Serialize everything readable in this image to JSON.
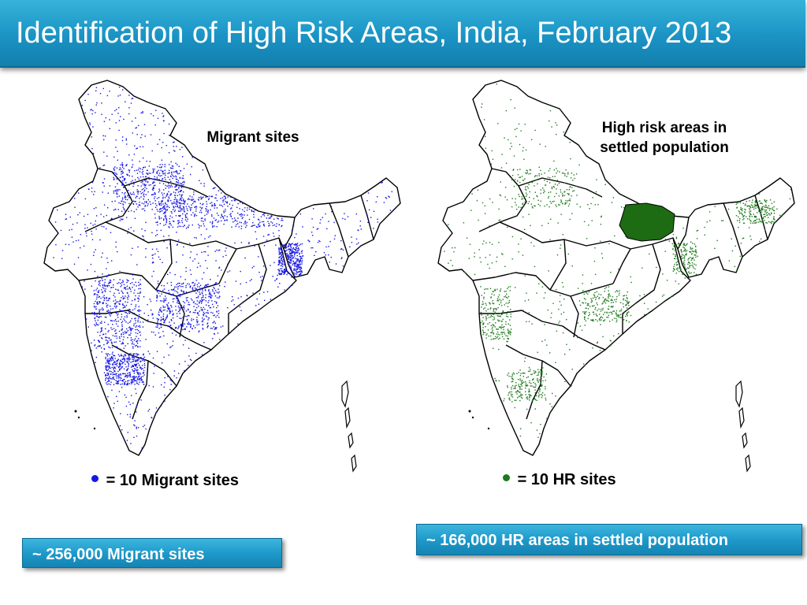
{
  "title": "Identification of High Risk Areas, India, February 2013",
  "maps": {
    "left": {
      "label": "Migrant sites",
      "dot_color": "#1515e6",
      "legend_symbol": "=",
      "legend_text": "10 Migrant sites",
      "summary": "~ 256,000 Migrant sites"
    },
    "right": {
      "label_line1": "High risk areas in",
      "label_line2": "settled population",
      "dot_color": "#1f7a1f",
      "legend_symbol": "=",
      "legend_text": "10 HR sites",
      "summary": "~ 166,000 HR areas in settled population"
    }
  },
  "colors": {
    "title_bar": "#1a93c4",
    "migrant_dots": "#1515e6",
    "hr_dots": "#1f7a1f",
    "outline": "#000000"
  }
}
